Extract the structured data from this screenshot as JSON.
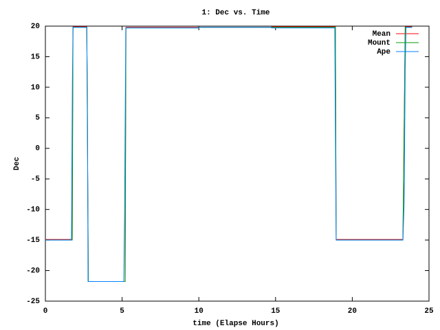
{
  "chart_data": {
    "type": "line",
    "title": "1: Dec vs. Time",
    "x_label": "time (Elapse Hours)",
    "y_label": "Dec",
    "xlim": [
      0,
      25
    ],
    "xticks": [
      0,
      5,
      10,
      15,
      20,
      25
    ],
    "ylim": [
      -25,
      20
    ],
    "yticks": [
      -25,
      -20,
      -15,
      -10,
      -5,
      0,
      5,
      10,
      15,
      20
    ],
    "legend": "upper right",
    "series": [
      {
        "name": "Mean",
        "color": "#ff0000",
        "x": [
          0,
          1.75,
          1.8,
          2.7,
          2.8,
          5.2,
          5.25,
          9.95,
          10.0,
          14.7,
          14.75,
          18.9,
          18.95,
          23.3,
          23.45,
          23.9
        ],
        "values": [
          -14.9,
          -14.9,
          19.9,
          19.9,
          -21.8,
          -21.8,
          19.8,
          19.8,
          19.8,
          19.8,
          19.9,
          19.9,
          -14.9,
          -14.9,
          19.9,
          19.9
        ]
      },
      {
        "name": "Mount",
        "color": "#00a000",
        "x": [
          0,
          1.75,
          1.8,
          2.7,
          2.8,
          5.2,
          5.25,
          9.95,
          10.0,
          14.7,
          14.75,
          18.9,
          18.95,
          23.3,
          23.45,
          23.9
        ],
        "values": [
          -15,
          -15,
          19.8,
          19.8,
          -21.8,
          -21.8,
          19.7,
          19.7,
          19.8,
          19.8,
          19.8,
          19.8,
          -15,
          -15,
          19.8,
          19.8
        ]
      },
      {
        "name": "Ape",
        "color": "#0080ff",
        "x": [
          0,
          1.7,
          1.72,
          1.76,
          1.8,
          2.69,
          2.74,
          2.78,
          5.11,
          5.16,
          5.24,
          9.95,
          10.0,
          14.7,
          14.75,
          18.86,
          18.9,
          18.95,
          23.3,
          23.38,
          23.45,
          23.5,
          23.9
        ],
        "values": [
          -15,
          -15,
          -6,
          11,
          19.8,
          19.8,
          9.5,
          -21.8,
          -21.8,
          -11,
          19.7,
          19.7,
          19.8,
          19.8,
          19.7,
          19.7,
          2.5,
          -15,
          -15,
          -9,
          13,
          19.8,
          19.8
        ]
      }
    ]
  }
}
